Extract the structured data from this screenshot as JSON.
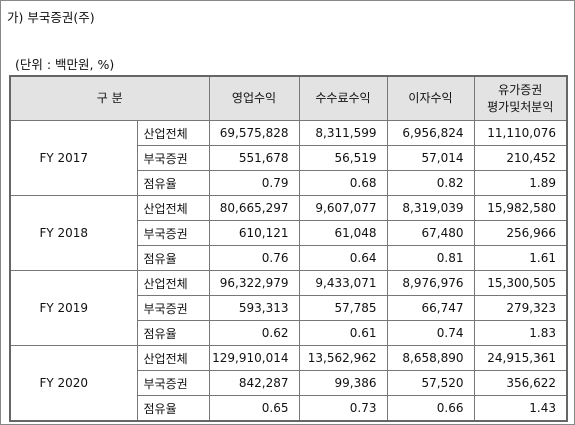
{
  "title": "가) 부국증권(주)",
  "unit": "(단위 : 백만원, %)",
  "table": {
    "columns": [
      "구 분",
      "영업수익",
      "수수료수익",
      "이자수익",
      [
        "유가증권",
        "평가및처분익"
      ]
    ],
    "groups": [
      {
        "year": "FY 2017",
        "rows": [
          {
            "label": "산업전체",
            "values": [
              "69,575,828",
              "8,311,599",
              "6,956,824",
              "11,110,076"
            ]
          },
          {
            "label": "부국증권",
            "values": [
              "551,678",
              "56,519",
              "57,014",
              "210,452"
            ]
          },
          {
            "label": "점유율",
            "values": [
              "0.79",
              "0.68",
              "0.82",
              "1.89"
            ]
          }
        ]
      },
      {
        "year": "FY 2018",
        "rows": [
          {
            "label": "산업전체",
            "values": [
              "80,665,297",
              "9,607,077",
              "8,319,039",
              "15,982,580"
            ]
          },
          {
            "label": "부국증권",
            "values": [
              "610,121",
              "61,048",
              "67,480",
              "256,966"
            ]
          },
          {
            "label": "점유율",
            "values": [
              "0.76",
              "0.64",
              "0.81",
              "1.61"
            ]
          }
        ]
      },
      {
        "year": "FY 2019",
        "rows": [
          {
            "label": "산업전체",
            "values": [
              "96,322,979",
              "9,433,071",
              "8,976,976",
              "15,300,505"
            ]
          },
          {
            "label": "부국증권",
            "values": [
              "593,313",
              "57,785",
              "66,747",
              "279,323"
            ]
          },
          {
            "label": "점유율",
            "values": [
              "0.62",
              "0.61",
              "0.74",
              "1.83"
            ]
          }
        ]
      },
      {
        "year": "FY 2020",
        "rows": [
          {
            "label": "산업전체",
            "values": [
              "129,910,014",
              "13,562,962",
              "8,658,890",
              "24,915,361"
            ]
          },
          {
            "label": "부국증권",
            "values": [
              "842,287",
              "99,386",
              "57,520",
              "356,622"
            ]
          },
          {
            "label": "점유율",
            "values": [
              "0.65",
              "0.73",
              "0.66",
              "1.43"
            ]
          }
        ]
      }
    ]
  }
}
